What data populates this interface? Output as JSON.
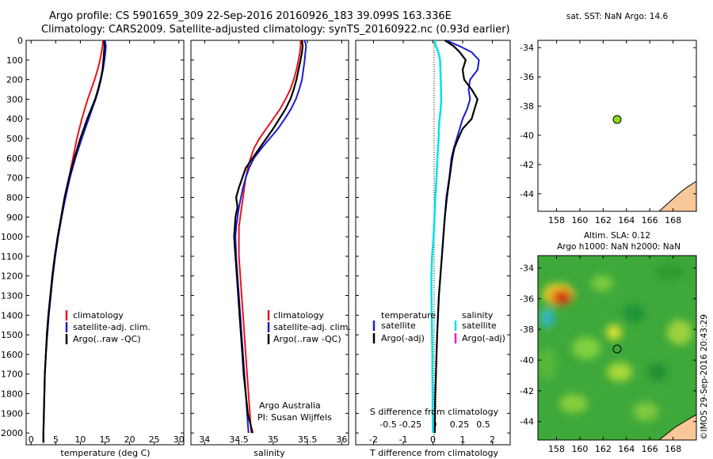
{
  "title": {
    "line1": "Argo profile: CS 5901659_309 22-Sep-2016 20160926_183 39.099S 163.336E",
    "line2": "Climatology: CARS2009. Satellite-adjusted climatology: synTS_20160922.nc (0.93d earlier)"
  },
  "colors": {
    "climatology": "#e8141c",
    "satellite": "#1a1ad8",
    "argo": "#000000",
    "temp_diff": "#00e0e8",
    "s_argo": "#e020c8",
    "land": "#f8c898",
    "float": "#8ed81c"
  },
  "depth_axis": {
    "ticks": [
      "0",
      "100",
      "200",
      "300",
      "400",
      "500",
      "600",
      "700",
      "800",
      "900",
      "1000",
      "1100",
      "1200",
      "1300",
      "1400",
      "1500",
      "1600",
      "1700",
      "1800",
      "1900",
      "2000"
    ],
    "ylim": [
      0,
      2060
    ]
  },
  "legend_profile": {
    "clim": "climatology",
    "sat": "satellite-adj. clim.",
    "argo": "Argo(..raw -QC)"
  },
  "legend_diff": {
    "t_head": "temperature",
    "s_head": "salinity",
    "sat": "satellite",
    "argo": "Argo(-adj)"
  },
  "credit": {
    "line1": "Argo Australia",
    "line2": "PI: Susan Wijffels"
  },
  "diff_axis": {
    "xlabel": "T difference from climatology",
    "top_label": "S difference from climatology",
    "t_ticks": [
      "-2",
      "-1",
      "0",
      "1",
      "2"
    ],
    "s_ticks": [
      "-0.5",
      "-0.25",
      "0",
      "0.25",
      "0.5"
    ]
  },
  "sst_map": {
    "title": "sat. SST: NaN Argo: 14.6",
    "lat_ticks": [
      "-34",
      "-36",
      "-38",
      "-40",
      "-42",
      "-44"
    ],
    "lon_ticks": [
      "158",
      "160",
      "162",
      "164",
      "166",
      "168"
    ]
  },
  "sla_map": {
    "title1": "Altim. SLA: 0.12",
    "title2": "Argo h1000: NaN h2000: NaN",
    "lat_ticks": [
      "-34",
      "-36",
      "-38",
      "-40",
      "-42",
      "-44"
    ],
    "lon_ticks": [
      "158",
      "160",
      "162",
      "164",
      "166",
      "168"
    ]
  },
  "stamp": "©IMOS 29-Sep-2016 20:43:29",
  "chart_data": [
    {
      "type": "line",
      "xlabel": "temperature (deg C)",
      "ylabel": "",
      "xlim": [
        -1,
        31
      ],
      "ylim": [
        0,
        2060
      ],
      "xticks": [
        "0",
        "5",
        "10",
        "15",
        "20",
        "25",
        "30"
      ],
      "depth": [
        0,
        30,
        60,
        100,
        150,
        200,
        250,
        300,
        350,
        400,
        450,
        500,
        600,
        700,
        800,
        900,
        1000,
        1100,
        1200,
        1300,
        1400,
        1500,
        1600,
        1700,
        1800,
        1900,
        2000,
        2050
      ],
      "series": [
        {
          "name": "climatology",
          "values": [
            14.6,
            14.5,
            14.3,
            14.0,
            13.5,
            12.9,
            12.2,
            11.5,
            10.9,
            10.3,
            9.8,
            9.3,
            8.5,
            7.7,
            6.9,
            6.2,
            5.5,
            4.9,
            4.4,
            4.0,
            3.6,
            3.3,
            3.0,
            2.8,
            2.7,
            2.6,
            2.5,
            2.5
          ]
        },
        {
          "name": "satellite-adj. clim.",
          "values": [
            15.0,
            15.2,
            15.1,
            14.9,
            14.6,
            14.2,
            13.7,
            13.1,
            12.4,
            11.7,
            11.0,
            10.3,
            9.0,
            7.9,
            7.0,
            6.2,
            5.5,
            4.9,
            4.4,
            4.0,
            3.6,
            3.3,
            3.0,
            2.8,
            2.7,
            2.6,
            2.5,
            2.5
          ]
        },
        {
          "name": "Argo(..raw -QC)",
          "values": [
            14.8,
            14.9,
            14.8,
            14.7,
            14.5,
            14.1,
            13.6,
            13.0,
            12.2,
            11.4,
            10.7,
            10.0,
            8.8,
            7.7,
            6.8,
            6.1,
            5.4,
            4.8,
            4.3,
            3.9,
            3.5,
            3.2,
            3.0,
            2.8,
            2.7,
            2.6,
            2.5,
            2.5
          ]
        }
      ]
    },
    {
      "type": "line",
      "xlabel": "salinity",
      "ylabel": "",
      "xlim": [
        33.8,
        36.1
      ],
      "ylim": [
        0,
        2060
      ],
      "xticks": [
        "34",
        "34.5",
        "35",
        "35.5",
        "36"
      ],
      "depth": [
        0,
        30,
        60,
        100,
        150,
        200,
        250,
        300,
        350,
        400,
        450,
        500,
        550,
        600,
        650,
        700,
        750,
        800,
        850,
        900,
        950,
        1000,
        1100,
        1200,
        1300,
        1400,
        1500,
        1600,
        1700,
        1800,
        1900,
        2000
      ],
      "series": [
        {
          "name": "climatology",
          "values": [
            35.4,
            35.4,
            35.39,
            35.37,
            35.34,
            35.3,
            35.25,
            35.18,
            35.1,
            35.0,
            34.9,
            34.8,
            34.72,
            34.67,
            34.63,
            34.6,
            34.58,
            34.56,
            34.54,
            34.52,
            34.5,
            34.5,
            34.5,
            34.52,
            34.54,
            34.56,
            34.58,
            34.6,
            34.62,
            34.64,
            34.66,
            34.68
          ]
        },
        {
          "name": "satellite-adj. clim.",
          "values": [
            35.46,
            35.48,
            35.47,
            35.46,
            35.44,
            35.42,
            35.38,
            35.33,
            35.26,
            35.17,
            35.07,
            34.95,
            34.83,
            34.72,
            34.65,
            34.6,
            34.56,
            34.53,
            34.5,
            34.48,
            34.46,
            34.45,
            34.46,
            34.48,
            34.5,
            34.52,
            34.54,
            34.56,
            34.58,
            34.6,
            34.62,
            34.64
          ]
        },
        {
          "name": "Argo(..raw -QC)",
          "values": [
            35.42,
            35.43,
            35.42,
            35.4,
            35.37,
            35.34,
            35.3,
            35.25,
            35.18,
            35.09,
            35.0,
            34.9,
            34.8,
            34.7,
            34.6,
            34.55,
            34.5,
            34.46,
            34.48,
            34.45,
            34.44,
            34.43,
            34.45,
            34.47,
            34.49,
            34.51,
            34.53,
            34.55,
            34.57,
            34.6,
            34.63,
            34.7
          ]
        }
      ]
    },
    {
      "type": "line",
      "xlabel": "T difference from climatology",
      "ylabel": "",
      "xlim": [
        -2.6,
        2.6
      ],
      "ylim": [
        0,
        2060
      ],
      "xticks": [
        "-2",
        "-1",
        "0",
        "1",
        "2"
      ],
      "depth": [
        0,
        30,
        60,
        100,
        150,
        200,
        250,
        300,
        350,
        400,
        450,
        500,
        550,
        600,
        700,
        800,
        900,
        1000,
        1100,
        1200,
        1300,
        1400,
        1500,
        1600,
        1700,
        1800,
        1900,
        2000
      ],
      "series": [
        {
          "name": "temperature satellite",
          "values": [
            0.45,
            0.9,
            1.3,
            1.55,
            1.5,
            1.25,
            1.2,
            1.25,
            1.15,
            1.0,
            0.9,
            0.8,
            0.7,
            0.62,
            0.55,
            0.45,
            0.4,
            0.35,
            0.3,
            0.25,
            0.2,
            0.17,
            0.14,
            0.12,
            0.1,
            0.08,
            0.07,
            0.06
          ]
        },
        {
          "name": "temperature Argo(-adj)",
          "values": [
            0.4,
            0.7,
            0.9,
            1.1,
            1.0,
            1.05,
            1.3,
            1.5,
            1.4,
            1.3,
            1.0,
            0.85,
            0.72,
            0.65,
            0.56,
            0.47,
            0.4,
            0.35,
            0.3,
            0.25,
            0.2,
            0.17,
            0.14,
            0.12,
            0.1,
            0.08,
            0.07,
            0.06
          ]
        },
        {
          "name": "salinity satellite",
          "values": [
            0.05,
            0.1,
            0.18,
            0.24,
            0.25,
            0.26,
            0.27,
            0.28,
            0.26,
            0.22,
            0.2,
            0.19,
            0.17,
            0.15,
            0.12,
            0.08,
            0.05,
            0.02,
            -0.03,
            -0.05,
            -0.05,
            -0.04,
            -0.03,
            -0.02,
            -0.02,
            -0.01,
            -0.01,
            0.0
          ]
        }
      ]
    }
  ]
}
